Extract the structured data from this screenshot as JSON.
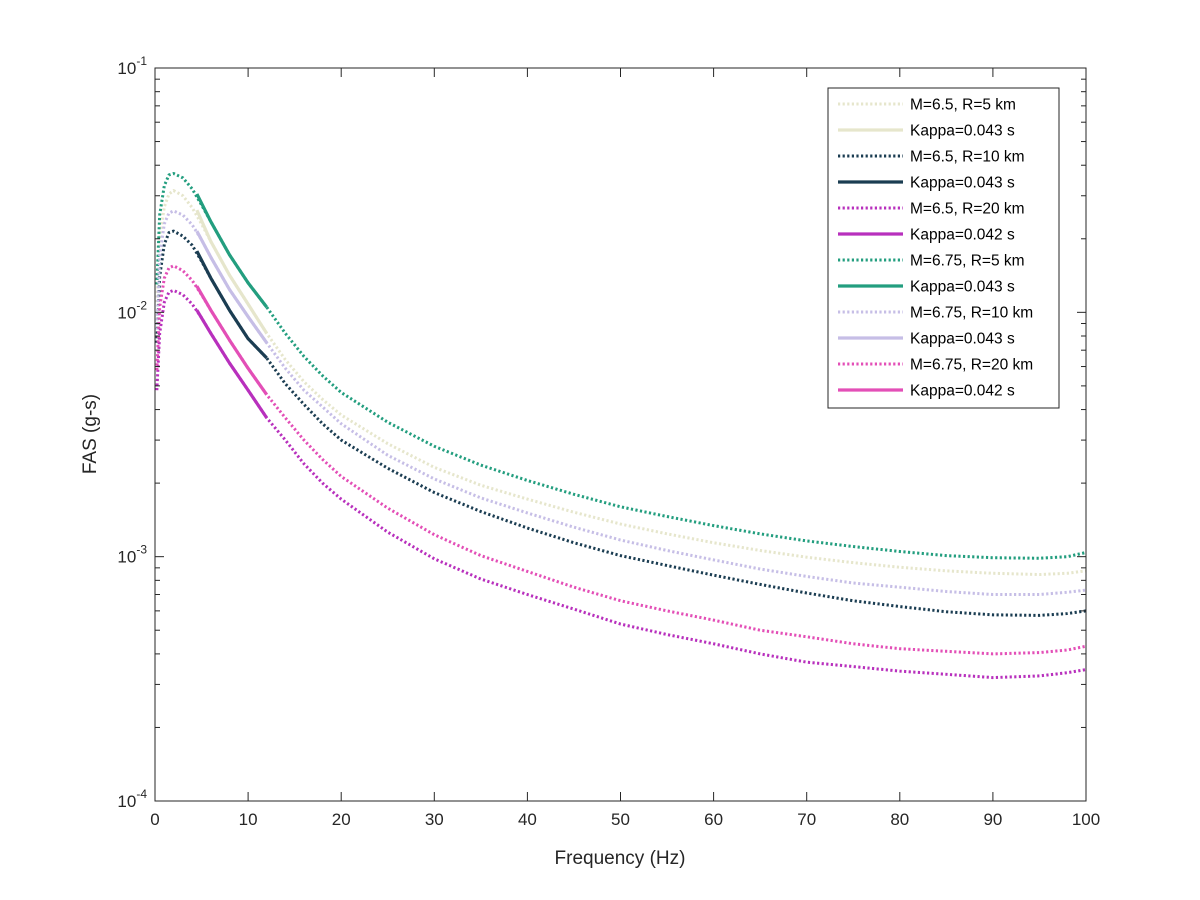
{
  "chart_data": {
    "type": "line",
    "xlabel": "Frequency (Hz)",
    "ylabel": "FAS (g-s)",
    "xlim": [
      0,
      100
    ],
    "ylim": [
      0.0001,
      0.1
    ],
    "yscale": "log",
    "grid": false,
    "legend_position": "top-right",
    "x_ticks": [
      "0",
      "10",
      "20",
      "30",
      "40",
      "50",
      "60",
      "70",
      "80",
      "90",
      "100"
    ],
    "y_ticks": [
      {
        "base": "10",
        "exp": "-4"
      },
      {
        "base": "10",
        "exp": "-3"
      },
      {
        "base": "10",
        "exp": "-2"
      },
      {
        "base": "10",
        "exp": "-1"
      }
    ],
    "series": [
      {
        "name": "M=6.5, R=5 km",
        "color": "#e6e6cc",
        "style": "dotted",
        "x": [
          0.2,
          0.5,
          1,
          1.5,
          2,
          3,
          4,
          5,
          6,
          8,
          10,
          12,
          14,
          16,
          18,
          20,
          25,
          30,
          35,
          40,
          45,
          50,
          55,
          60,
          65,
          70,
          75,
          80,
          85,
          90,
          95,
          98,
          100
        ],
        "y": [
          0.011,
          0.02,
          0.027,
          0.0305,
          0.0315,
          0.03,
          0.0268,
          0.023,
          0.0195,
          0.0142,
          0.0108,
          0.0082,
          0.0064,
          0.0052,
          0.0044,
          0.0038,
          0.0029,
          0.00232,
          0.00196,
          0.00172,
          0.00152,
          0.00136,
          0.00124,
          0.00114,
          0.00106,
          0.000995,
          0.000945,
          0.000905,
          0.000875,
          0.000855,
          0.000845,
          0.000855,
          0.000875
        ]
      },
      {
        "name": "Kappa=0.043 s",
        "color": "#e6e6cc",
        "style": "solid",
        "x": [
          4.5,
          6,
          8,
          10,
          12
        ],
        "y": [
          0.0262,
          0.0195,
          0.0142,
          0.0108,
          0.0082
        ]
      },
      {
        "name": "M=6.5, R=10 km",
        "color": "#1b3d52",
        "style": "dotted",
        "x": [
          0.2,
          0.5,
          1,
          1.5,
          2,
          3,
          4,
          5,
          6,
          8,
          10,
          12,
          14,
          16,
          18,
          20,
          25,
          30,
          35,
          40,
          45,
          50,
          55,
          60,
          65,
          70,
          75,
          80,
          85,
          90,
          95,
          98,
          100
        ],
        "y": [
          0.0075,
          0.014,
          0.019,
          0.0212,
          0.0215,
          0.0205,
          0.0188,
          0.0162,
          0.0138,
          0.0102,
          0.0078,
          0.0065,
          0.0051,
          0.0042,
          0.0035,
          0.003,
          0.0023,
          0.00183,
          0.00153,
          0.00131,
          0.00114,
          0.00101,
          0.00092,
          0.00084,
          0.00077,
          0.00071,
          0.00066,
          0.000625,
          0.000595,
          0.000578,
          0.000575,
          0.000585,
          0.0006
        ]
      },
      {
        "name": "Kappa=0.043 s",
        "color": "#1b3d52",
        "style": "solid",
        "x": [
          4.5,
          6,
          8,
          10,
          12
        ],
        "y": [
          0.0178,
          0.0138,
          0.0102,
          0.0078,
          0.0065
        ]
      },
      {
        "name": "M=6.5, R=20 km",
        "color": "#b830bd",
        "style": "dotted",
        "x": [
          0.2,
          0.5,
          1,
          1.5,
          2,
          3,
          4,
          5,
          6,
          8,
          10,
          12,
          14,
          16,
          18,
          20,
          25,
          30,
          35,
          40,
          45,
          50,
          55,
          60,
          65,
          70,
          75,
          80,
          85,
          90,
          95,
          98,
          100
        ],
        "y": [
          0.0048,
          0.0082,
          0.011,
          0.0121,
          0.0123,
          0.0118,
          0.0108,
          0.0095,
          0.0082,
          0.0062,
          0.0048,
          0.0037,
          0.003,
          0.0024,
          0.002,
          0.00172,
          0.00126,
          0.00098,
          0.00081,
          0.0007,
          0.00061,
          0.00053,
          0.00048,
          0.00044,
          0.0004,
          0.00037,
          0.000355,
          0.00034,
          0.00033,
          0.00032,
          0.000325,
          0.000335,
          0.000345
        ]
      },
      {
        "name": "Kappa=0.042 s",
        "color": "#b830bd",
        "style": "solid",
        "x": [
          4.5,
          6,
          8,
          10,
          12
        ],
        "y": [
          0.0102,
          0.0082,
          0.0062,
          0.0048,
          0.0037
        ]
      },
      {
        "name": "M=6.75, R=5 km",
        "color": "#239e7f",
        "style": "dotted",
        "x": [
          0.2,
          0.5,
          1,
          1.5,
          2,
          3,
          4,
          5,
          6,
          8,
          10,
          12,
          14,
          16,
          18,
          20,
          25,
          30,
          35,
          40,
          45,
          50,
          55,
          60,
          65,
          70,
          75,
          80,
          85,
          90,
          95,
          98,
          100
        ],
        "y": [
          0.013,
          0.025,
          0.033,
          0.0365,
          0.037,
          0.0355,
          0.032,
          0.0275,
          0.0235,
          0.0172,
          0.0132,
          0.0105,
          0.0082,
          0.0066,
          0.0055,
          0.0047,
          0.00355,
          0.00283,
          0.00237,
          0.00205,
          0.0018,
          0.0016,
          0.00146,
          0.00134,
          0.00124,
          0.00116,
          0.0011,
          0.00105,
          0.00101,
          0.00099,
          0.000985,
          0.001,
          0.00104
        ]
      },
      {
        "name": "Kappa=0.043 s",
        "color": "#239e7f",
        "style": "solid",
        "x": [
          4.5,
          6,
          8,
          10,
          12
        ],
        "y": [
          0.0305,
          0.0235,
          0.0172,
          0.0132,
          0.0105
        ]
      },
      {
        "name": "M=6.75, R=10 km",
        "color": "#c6bee6",
        "style": "dotted",
        "x": [
          0.2,
          0.5,
          1,
          1.5,
          2,
          3,
          4,
          5,
          6,
          8,
          10,
          12,
          14,
          16,
          18,
          20,
          25,
          30,
          35,
          40,
          45,
          50,
          55,
          60,
          65,
          70,
          75,
          80,
          85,
          90,
          95,
          98,
          100
        ],
        "y": [
          0.0085,
          0.017,
          0.023,
          0.0255,
          0.026,
          0.025,
          0.0228,
          0.0198,
          0.0168,
          0.0124,
          0.0096,
          0.0075,
          0.0059,
          0.0048,
          0.0041,
          0.0035,
          0.0026,
          0.00208,
          0.00174,
          0.00151,
          0.00132,
          0.00117,
          0.00106,
          0.00097,
          0.00089,
          0.00083,
          0.00078,
          0.00075,
          0.00072,
          0.0007,
          0.0007,
          0.000715,
          0.00073
        ]
      },
      {
        "name": "Kappa=0.043 s",
        "color": "#c6bee6",
        "style": "solid",
        "x": [
          4.5,
          6,
          8,
          10,
          12
        ],
        "y": [
          0.0215,
          0.0168,
          0.0124,
          0.0096,
          0.0075
        ]
      },
      {
        "name": "M=6.75, R=20 km",
        "color": "#e34fb7",
        "style": "dotted",
        "x": [
          0.2,
          0.5,
          1,
          1.5,
          2,
          3,
          4,
          5,
          6,
          8,
          10,
          12,
          14,
          16,
          18,
          20,
          25,
          30,
          35,
          40,
          45,
          50,
          55,
          60,
          65,
          70,
          75,
          80,
          85,
          90,
          95,
          98,
          100
        ],
        "y": [
          0.0058,
          0.0105,
          0.0138,
          0.0152,
          0.0155,
          0.0148,
          0.0135,
          0.0118,
          0.0102,
          0.0077,
          0.0059,
          0.0046,
          0.0037,
          0.003,
          0.0025,
          0.00213,
          0.00158,
          0.00123,
          0.00101,
          0.00087,
          0.00075,
          0.00066,
          0.0006,
          0.00055,
          0.0005,
          0.00047,
          0.00044,
          0.00042,
          0.00041,
          0.0004,
          0.000405,
          0.000415,
          0.00043
        ]
      },
      {
        "name": "Kappa=0.042 s",
        "color": "#e34fb7",
        "style": "solid",
        "x": [
          4.5,
          6,
          8,
          10,
          12
        ],
        "y": [
          0.0128,
          0.0102,
          0.0077,
          0.0059,
          0.0046
        ]
      }
    ]
  }
}
